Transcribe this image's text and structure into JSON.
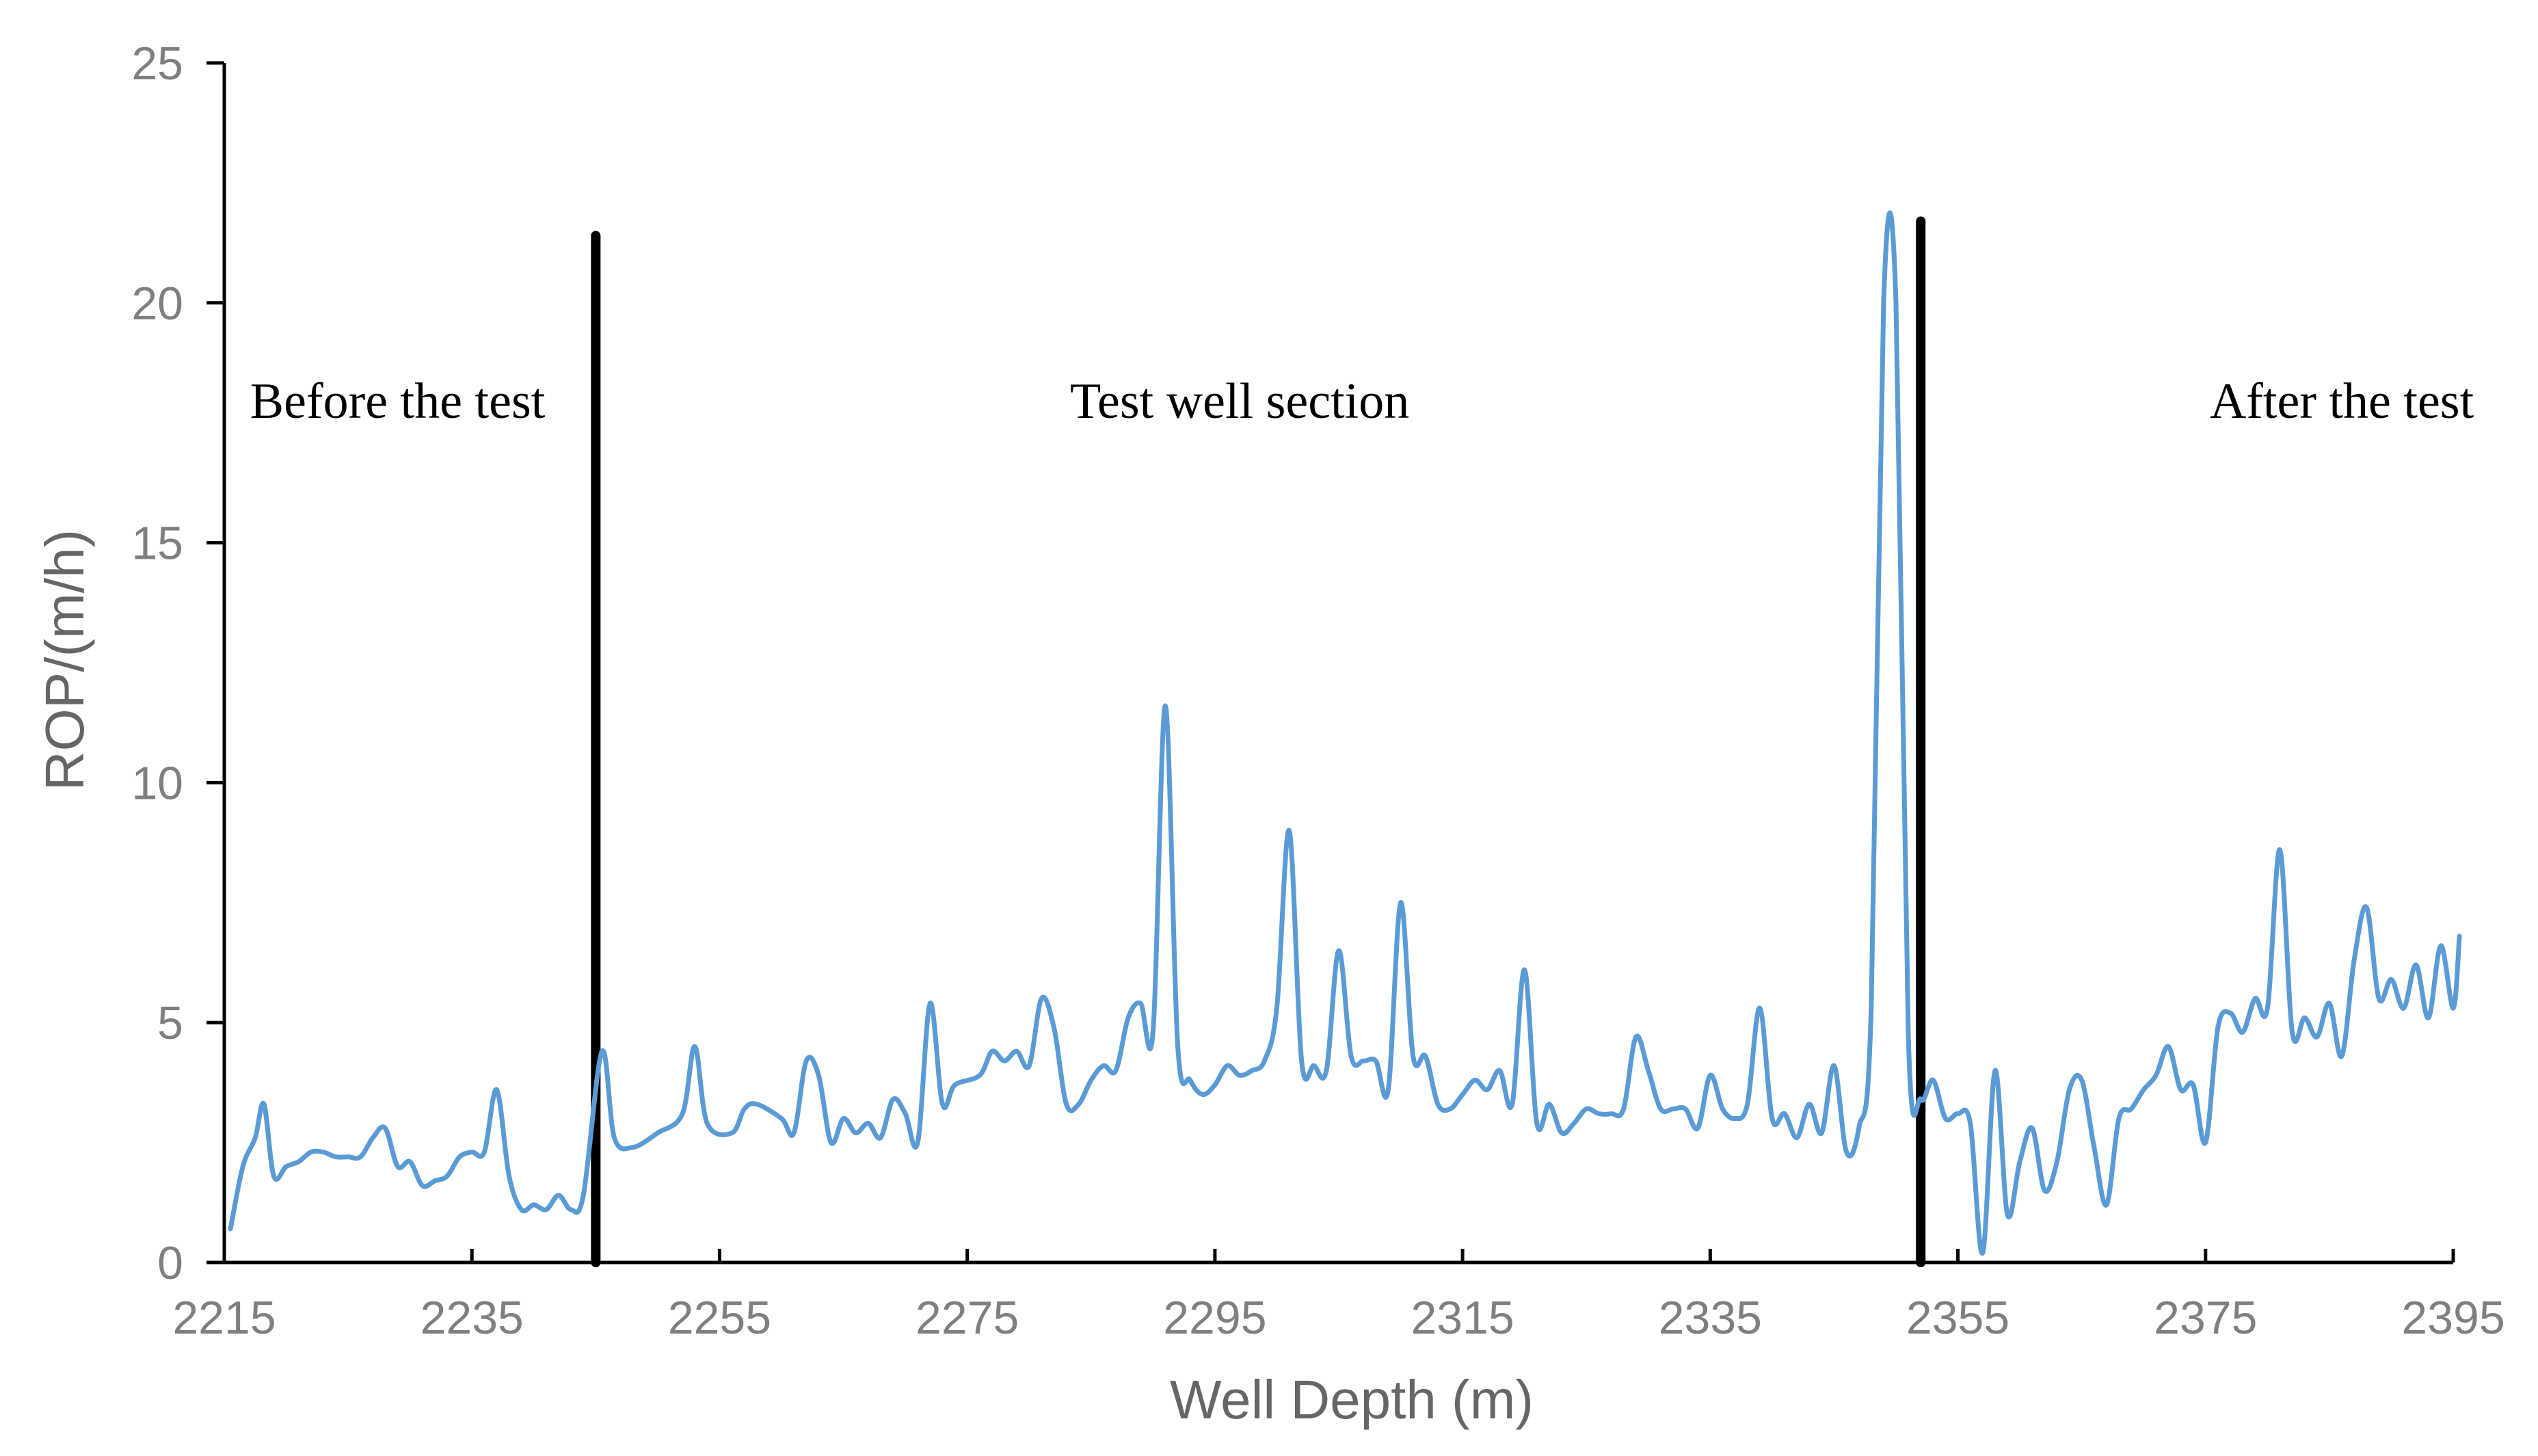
{
  "chart_data": {
    "type": "line",
    "title": "",
    "xlabel": "Well Depth (m)",
    "ylabel": "ROP/(m/h)",
    "xlim": [
      2215,
      2395
    ],
    "ylim": [
      0,
      25
    ],
    "xticks": [
      2215,
      2235,
      2255,
      2275,
      2295,
      2315,
      2335,
      2355,
      2375,
      2395
    ],
    "yticks": [
      0,
      5,
      10,
      15,
      20,
      25
    ],
    "grid": false,
    "legend": "none",
    "line_color": "#5B9BD5",
    "dividers": [
      {
        "x": 2245,
        "y_top": 21.4
      },
      {
        "x": 2352,
        "y_top": 21.7
      }
    ],
    "annotations": [
      {
        "text": "Before the test",
        "x": 2229,
        "y": 17.6
      },
      {
        "text": "Test well section",
        "x": 2297,
        "y": 17.6
      },
      {
        "text": "After the test",
        "x": 2386,
        "y": 17.6
      }
    ],
    "series": [
      {
        "points": [
          [
            2215.5,
            0.7
          ],
          [
            2216.5,
            2.0
          ],
          [
            2217.5,
            2.6
          ],
          [
            2218.2,
            3.3
          ],
          [
            2219,
            1.8
          ],
          [
            2220,
            2.0
          ],
          [
            2221,
            2.1
          ],
          [
            2222,
            2.3
          ],
          [
            2223,
            2.3
          ],
          [
            2224,
            2.2
          ],
          [
            2225,
            2.2
          ],
          [
            2226,
            2.2
          ],
          [
            2227,
            2.6
          ],
          [
            2228,
            2.8
          ],
          [
            2229,
            2.0
          ],
          [
            2230,
            2.1
          ],
          [
            2231,
            1.6
          ],
          [
            2232,
            1.7
          ],
          [
            2233,
            1.8
          ],
          [
            2234,
            2.2
          ],
          [
            2235,
            2.3
          ],
          [
            2236,
            2.3
          ],
          [
            2237,
            3.6
          ],
          [
            2238,
            1.8
          ],
          [
            2239,
            1.1
          ],
          [
            2240,
            1.2
          ],
          [
            2241,
            1.1
          ],
          [
            2242,
            1.4
          ],
          [
            2243,
            1.1
          ],
          [
            2244,
            1.4
          ],
          [
            2245.5,
            4.4
          ],
          [
            2246.5,
            2.6
          ],
          [
            2248,
            2.4
          ],
          [
            2250,
            2.7
          ],
          [
            2252,
            3.1
          ],
          [
            2253,
            4.5
          ],
          [
            2254,
            2.9
          ],
          [
            2256,
            2.7
          ],
          [
            2257,
            3.2
          ],
          [
            2258,
            3.3
          ],
          [
            2260,
            3.0
          ],
          [
            2261,
            2.7
          ],
          [
            2262,
            4.2
          ],
          [
            2263,
            3.9
          ],
          [
            2264,
            2.5
          ],
          [
            2265,
            3.0
          ],
          [
            2266,
            2.7
          ],
          [
            2267,
            2.9
          ],
          [
            2268,
            2.6
          ],
          [
            2269,
            3.4
          ],
          [
            2270,
            3.1
          ],
          [
            2271,
            2.5
          ],
          [
            2272,
            5.4
          ],
          [
            2273,
            3.3
          ],
          [
            2274,
            3.7
          ],
          [
            2276,
            3.9
          ],
          [
            2277,
            4.4
          ],
          [
            2278,
            4.2
          ],
          [
            2279,
            4.4
          ],
          [
            2280,
            4.1
          ],
          [
            2281,
            5.5
          ],
          [
            2282,
            4.9
          ],
          [
            2283,
            3.3
          ],
          [
            2284,
            3.3
          ],
          [
            2285,
            3.8
          ],
          [
            2286,
            4.1
          ],
          [
            2287,
            4.0
          ],
          [
            2288,
            5.1
          ],
          [
            2289,
            5.4
          ],
          [
            2290,
            4.8
          ],
          [
            2291,
            11.6
          ],
          [
            2292,
            4.5
          ],
          [
            2293,
            3.8
          ],
          [
            2294,
            3.5
          ],
          [
            2295,
            3.7
          ],
          [
            2296,
            4.1
          ],
          [
            2297,
            3.9
          ],
          [
            2298,
            4.0
          ],
          [
            2299,
            4.2
          ],
          [
            2300,
            5.3
          ],
          [
            2301,
            9.0
          ],
          [
            2302,
            4.2
          ],
          [
            2303,
            4.1
          ],
          [
            2304,
            4.0
          ],
          [
            2305,
            6.5
          ],
          [
            2306,
            4.3
          ],
          [
            2307,
            4.2
          ],
          [
            2308,
            4.2
          ],
          [
            2309,
            3.6
          ],
          [
            2310,
            7.5
          ],
          [
            2311,
            4.3
          ],
          [
            2312,
            4.3
          ],
          [
            2313,
            3.3
          ],
          [
            2314,
            3.2
          ],
          [
            2315,
            3.5
          ],
          [
            2316,
            3.8
          ],
          [
            2317,
            3.6
          ],
          [
            2318,
            4.0
          ],
          [
            2319,
            3.3
          ],
          [
            2320,
            6.1
          ],
          [
            2321,
            2.9
          ],
          [
            2322,
            3.3
          ],
          [
            2323,
            2.7
          ],
          [
            2324,
            2.9
          ],
          [
            2325,
            3.2
          ],
          [
            2326,
            3.1
          ],
          [
            2327,
            3.1
          ],
          [
            2328,
            3.2
          ],
          [
            2329,
            4.7
          ],
          [
            2330,
            4.0
          ],
          [
            2331,
            3.2
          ],
          [
            2332,
            3.2
          ],
          [
            2333,
            3.2
          ],
          [
            2334,
            2.8
          ],
          [
            2335,
            3.9
          ],
          [
            2336,
            3.2
          ],
          [
            2337,
            3.0
          ],
          [
            2338,
            3.3
          ],
          [
            2339,
            5.3
          ],
          [
            2340,
            3.0
          ],
          [
            2341,
            3.1
          ],
          [
            2342,
            2.6
          ],
          [
            2343,
            3.3
          ],
          [
            2344,
            2.7
          ],
          [
            2345,
            4.1
          ],
          [
            2346,
            2.3
          ],
          [
            2347,
            2.8
          ],
          [
            2348,
            5.3
          ],
          [
            2349,
            20.0
          ],
          [
            2350,
            20.0
          ],
          [
            2351,
            4.7
          ],
          [
            2352,
            3.4
          ],
          [
            2353,
            3.8
          ],
          [
            2354,
            3.0
          ],
          [
            2355,
            3.1
          ],
          [
            2356,
            2.9
          ],
          [
            2357,
            0.2
          ],
          [
            2358,
            4.0
          ],
          [
            2359,
            1.0
          ],
          [
            2360,
            2.1
          ],
          [
            2361,
            2.8
          ],
          [
            2362,
            1.5
          ],
          [
            2363,
            2.1
          ],
          [
            2364,
            3.6
          ],
          [
            2365,
            3.8
          ],
          [
            2366,
            2.4
          ],
          [
            2367,
            1.2
          ],
          [
            2368,
            3.0
          ],
          [
            2369,
            3.2
          ],
          [
            2370,
            3.6
          ],
          [
            2371,
            3.9
          ],
          [
            2372,
            4.5
          ],
          [
            2373,
            3.6
          ],
          [
            2374,
            3.7
          ],
          [
            2375,
            2.5
          ],
          [
            2376,
            4.9
          ],
          [
            2377,
            5.2
          ],
          [
            2378,
            4.8
          ],
          [
            2379,
            5.5
          ],
          [
            2380,
            5.3
          ],
          [
            2381,
            8.6
          ],
          [
            2382,
            4.8
          ],
          [
            2383,
            5.1
          ],
          [
            2384,
            4.7
          ],
          [
            2385,
            5.4
          ],
          [
            2386,
            4.3
          ],
          [
            2387,
            6.3
          ],
          [
            2388,
            7.4
          ],
          [
            2389,
            5.5
          ],
          [
            2390,
            5.9
          ],
          [
            2391,
            5.3
          ],
          [
            2392,
            6.2
          ],
          [
            2393,
            5.1
          ],
          [
            2394,
            6.6
          ],
          [
            2395,
            5.3
          ],
          [
            2395.5,
            6.8
          ]
        ]
      }
    ]
  }
}
